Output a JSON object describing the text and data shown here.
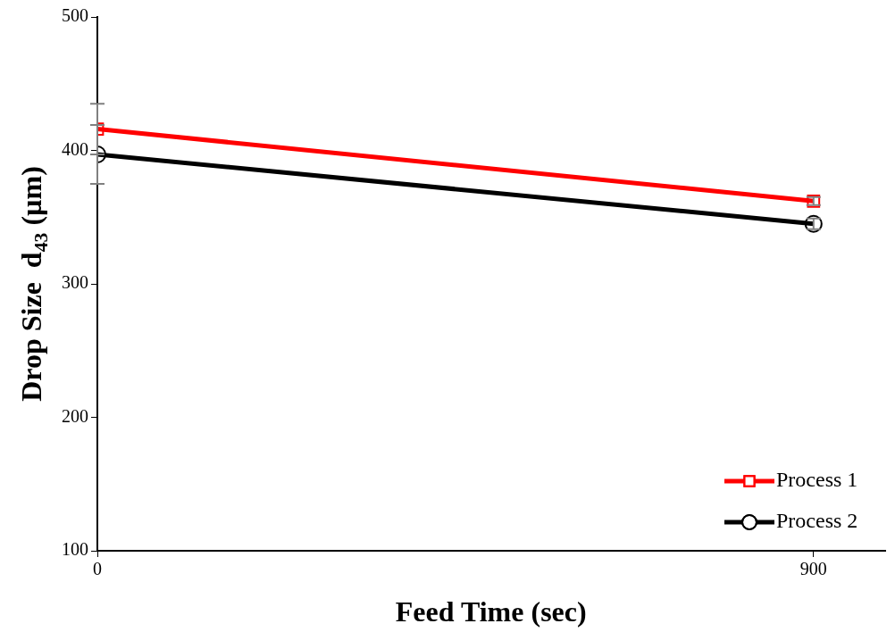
{
  "chart_data": {
    "type": "line",
    "xlabel": "Feed Time (sec)",
    "ylabel": "Drop Size  d$_{43}$ (µm)",
    "x": [
      0,
      900
    ],
    "series": [
      {
        "name": "Process 1",
        "color": "#ff0000",
        "values": [
          416,
          362
        ],
        "errors": [
          19,
          3
        ],
        "marker": "square"
      },
      {
        "name": "Process 2",
        "color": "#000000",
        "values": [
          397,
          345
        ],
        "errors": [
          22,
          4
        ],
        "marker": "circle"
      }
    ],
    "xlim": [
      0,
      990
    ],
    "ylim": [
      100,
      500
    ],
    "xticks": [
      0,
      900
    ],
    "yticks": [
      100,
      200,
      300,
      400,
      500
    ],
    "grid": false,
    "legend": "bottom right"
  }
}
